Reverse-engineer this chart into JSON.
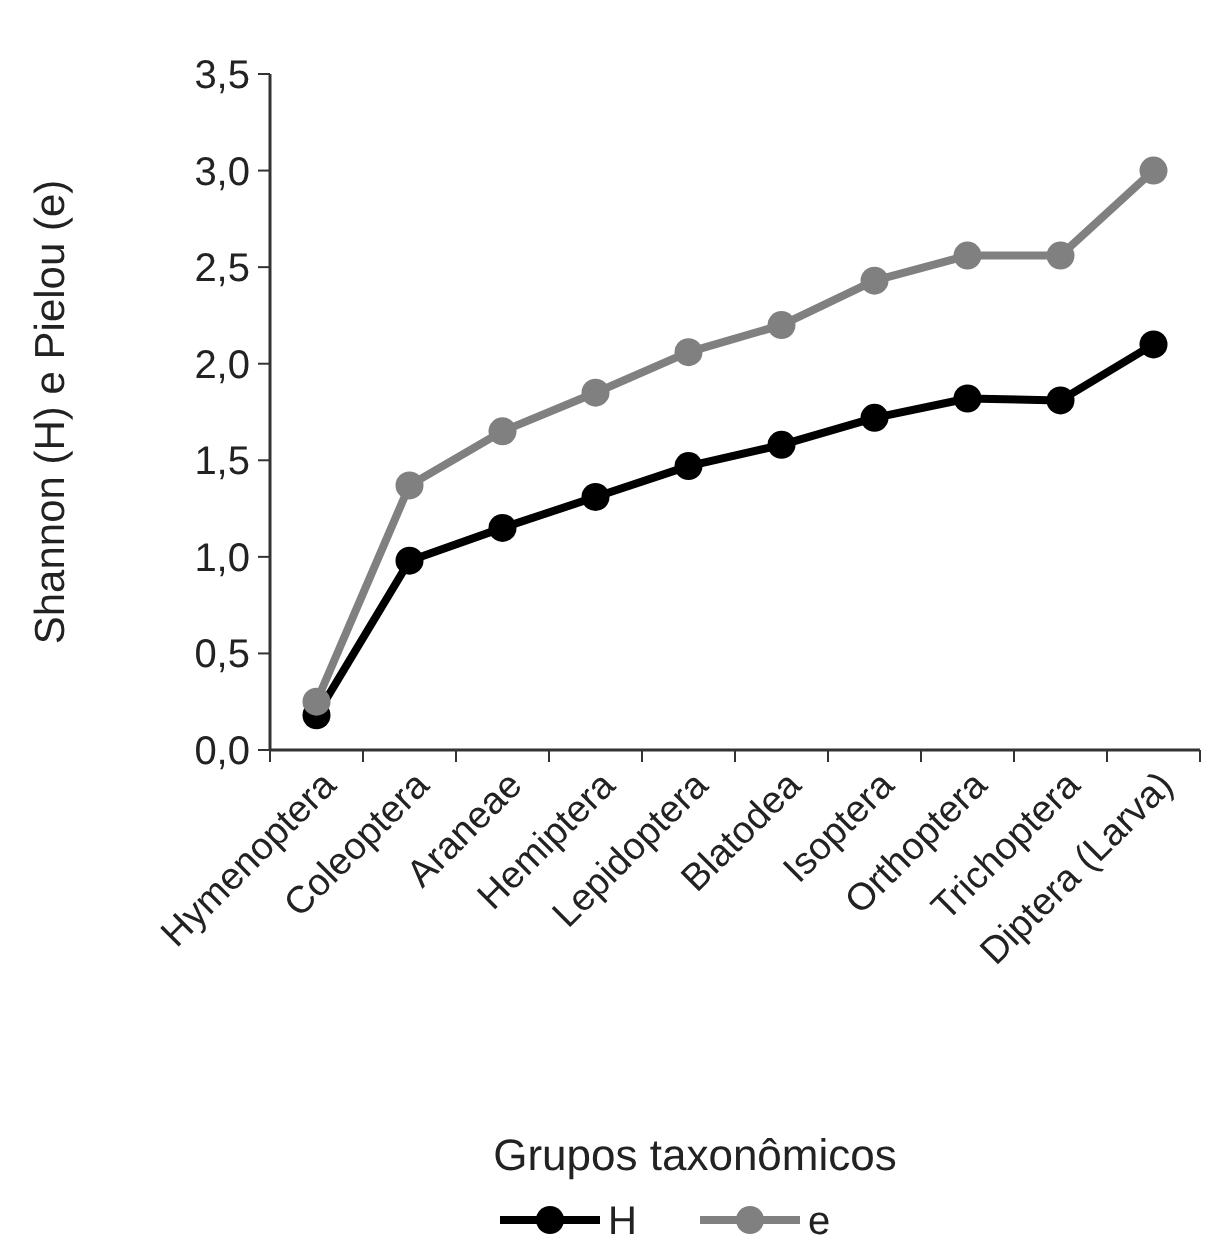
{
  "chart_data": {
    "type": "line",
    "xlabel": "Grupos taxonômicos",
    "ylabel": "Shannon (H) e Pielou (e)",
    "categories": [
      "Hymenoptera",
      "Coleoptera",
      "Araneae",
      "Hemiptera",
      "Lepidoptera",
      "Blatodea",
      "Isoptera",
      "Orthoptera",
      "Trichoptera",
      "Diptera (Larva)"
    ],
    "series": [
      {
        "name": "H",
        "color": "#000000",
        "values": [
          0.18,
          0.98,
          1.15,
          1.31,
          1.47,
          1.58,
          1.72,
          1.82,
          1.81,
          2.1
        ]
      },
      {
        "name": "e",
        "color": "#808080",
        "values": [
          0.25,
          1.37,
          1.65,
          1.85,
          2.06,
          2.2,
          2.43,
          2.56,
          2.56,
          3.0
        ]
      }
    ],
    "ylim": [
      0,
      3.5
    ],
    "yticks": [
      {
        "value": 0,
        "label": "0,0"
      },
      {
        "value": 0.5,
        "label": "0,5"
      },
      {
        "value": 1,
        "label": "1,0"
      },
      {
        "value": 1.5,
        "label": "1,5"
      },
      {
        "value": 2,
        "label": "2,0"
      },
      {
        "value": 2.5,
        "label": "2,5"
      },
      {
        "value": 3,
        "label": "3,0"
      },
      {
        "value": 3.5,
        "label": "3,5"
      }
    ],
    "grid": false,
    "legend": "bottom",
    "marker": "circle",
    "line_style": "solid"
  }
}
